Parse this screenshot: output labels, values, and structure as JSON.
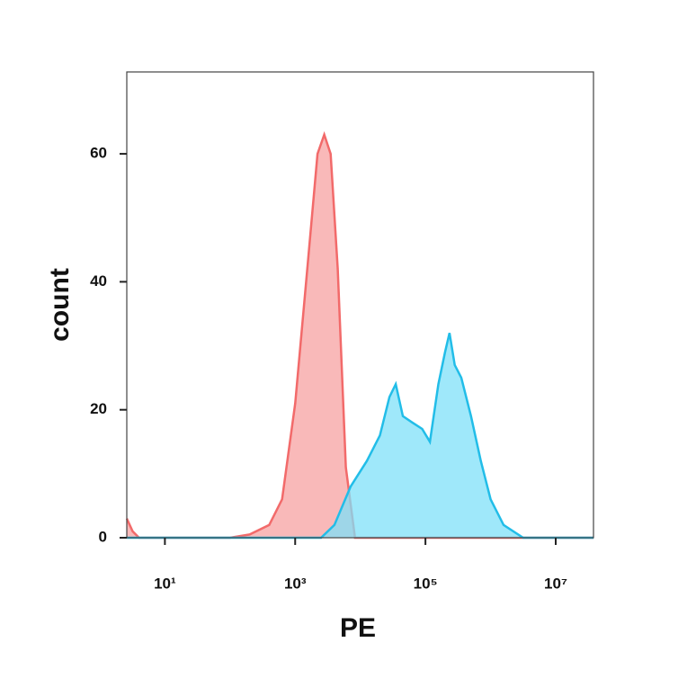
{
  "chart_data": {
    "type": "histogram-overlay",
    "x_label": "PE",
    "y_label": "count",
    "xscale": "log",
    "xlim": [
      2.6,
      38000000
    ],
    "ylim": [
      0,
      72.8
    ],
    "xticks": [
      {
        "value": 10,
        "label": "10¹"
      },
      {
        "value": 1000,
        "label": "10³"
      },
      {
        "value": 100000,
        "label": "10⁵"
      },
      {
        "value": 10000000,
        "label": "10⁷"
      }
    ],
    "yticks": [
      0,
      20,
      40,
      60
    ],
    "series": [
      {
        "color": "#f26a6a",
        "fill": "#f7a1a1",
        "x": [
          2.6,
          3.2,
          4,
          100,
          200,
          400,
          630,
          1000,
          1600,
          2200,
          2800,
          3500,
          4500,
          6000,
          8300,
          32000,
          38000000
        ],
        "values": [
          3,
          1,
          0,
          0,
          0.5,
          2,
          6,
          21,
          44,
          60,
          63,
          60,
          42,
          11,
          0,
          0,
          0
        ]
      },
      {
        "color": "#22bde8",
        "fill": "#7fe0f8",
        "x": [
          2.6,
          2500,
          4000,
          7100,
          12600,
          20000,
          28000,
          35000,
          45000,
          63000,
          89000,
          117000,
          158000,
          200000,
          234000,
          282000,
          355000,
          500000,
          708000,
          1000000,
          1580000,
          3160000,
          38000000
        ],
        "values": [
          0,
          0,
          2,
          8,
          12,
          16,
          22,
          24,
          19,
          18,
          17,
          15,
          24,
          29,
          32,
          27,
          25,
          19,
          12,
          6,
          2,
          0,
          0
        ]
      }
    ]
  }
}
